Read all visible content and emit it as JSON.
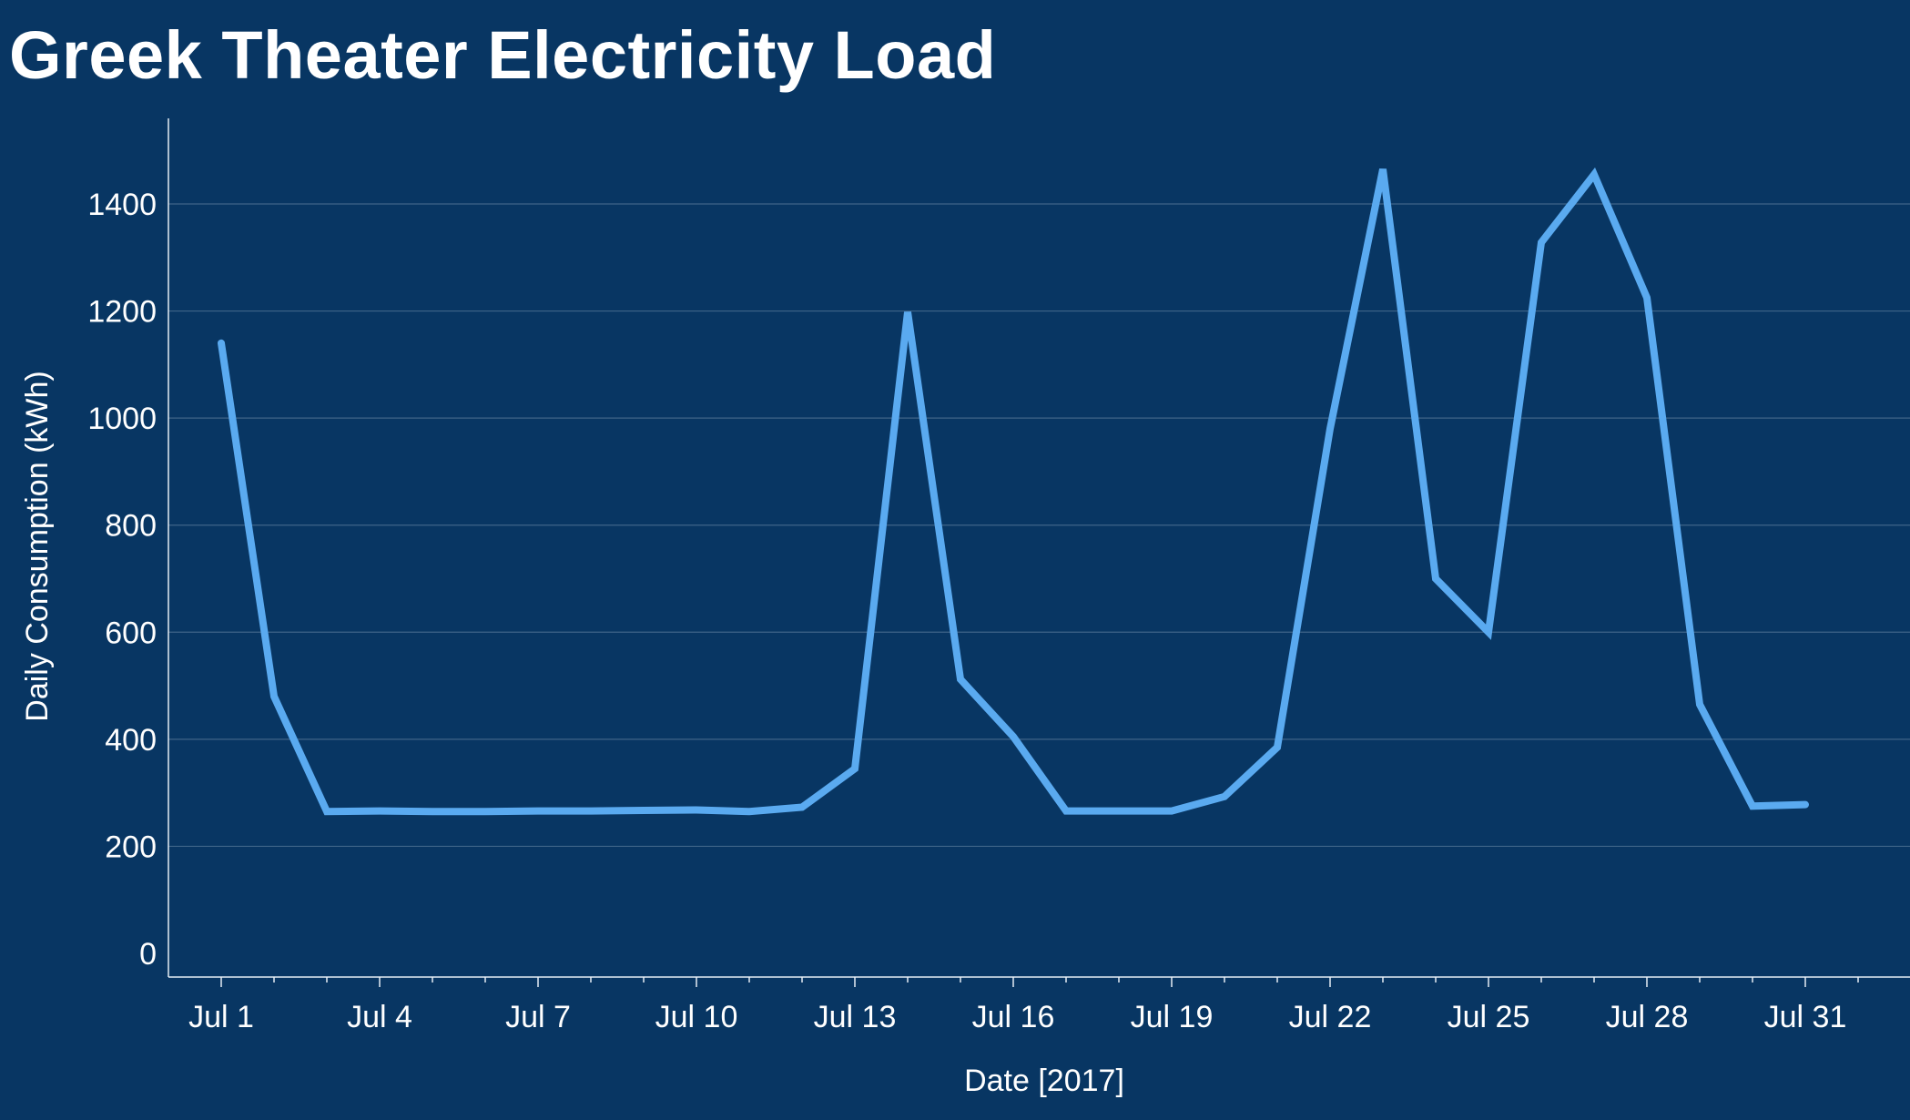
{
  "title": "Greek Theater Electricity Load",
  "colors": {
    "background": "#083663",
    "line": "#5aaaf0",
    "grid": "#3f6488",
    "axis": "#e6edf5",
    "text": "#ffffff"
  },
  "chart_data": {
    "type": "line",
    "title": "Greek Theater Electricity Load",
    "xlabel": "Date  [2017]",
    "ylabel": "Daily Consumption (kWh)",
    "ylim": [
      -50,
      1550
    ],
    "xlim": [
      "2017-06-30T20:00",
      "2017-08-01"
    ],
    "grid": "horizontal",
    "yticks": [
      0,
      200,
      400,
      600,
      800,
      1000,
      1200,
      1400
    ],
    "xticks": [
      {
        "date": "2017-07-01",
        "label": "Jul 1"
      },
      {
        "date": "2017-07-04",
        "label": "Jul 4"
      },
      {
        "date": "2017-07-07",
        "label": "Jul 7"
      },
      {
        "date": "2017-07-10",
        "label": "Jul 10"
      },
      {
        "date": "2017-07-13",
        "label": "Jul 13"
      },
      {
        "date": "2017-07-16",
        "label": "Jul 16"
      },
      {
        "date": "2017-07-19",
        "label": "Jul 19"
      },
      {
        "date": "2017-07-22",
        "label": "Jul 22"
      },
      {
        "date": "2017-07-25",
        "label": "Jul 25"
      },
      {
        "date": "2017-07-28",
        "label": "Jul 28"
      },
      {
        "date": "2017-07-31",
        "label": "Jul 31"
      }
    ],
    "x": [
      "2017-07-01",
      "2017-07-02",
      "2017-07-03",
      "2017-07-04",
      "2017-07-05",
      "2017-07-06",
      "2017-07-07",
      "2017-07-08",
      "2017-07-09",
      "2017-07-10",
      "2017-07-11",
      "2017-07-12",
      "2017-07-13",
      "2017-07-14",
      "2017-07-15",
      "2017-07-16",
      "2017-07-17",
      "2017-07-18",
      "2017-07-19",
      "2017-07-20",
      "2017-07-21",
      "2017-07-22",
      "2017-07-23",
      "2017-07-24",
      "2017-07-25",
      "2017-07-26",
      "2017-07-27",
      "2017-07-28",
      "2017-07-29",
      "2017-07-30",
      "2017-07-31"
    ],
    "series": [
      {
        "values": [
          1140,
          480,
          265,
          266,
          265,
          265,
          266,
          266,
          267,
          268,
          265,
          273,
          345,
          1198,
          512,
          405,
          266,
          266,
          266,
          293,
          385,
          980,
          1465,
          700,
          600,
          1328,
          1455,
          1225,
          465,
          275,
          278
        ]
      }
    ]
  }
}
